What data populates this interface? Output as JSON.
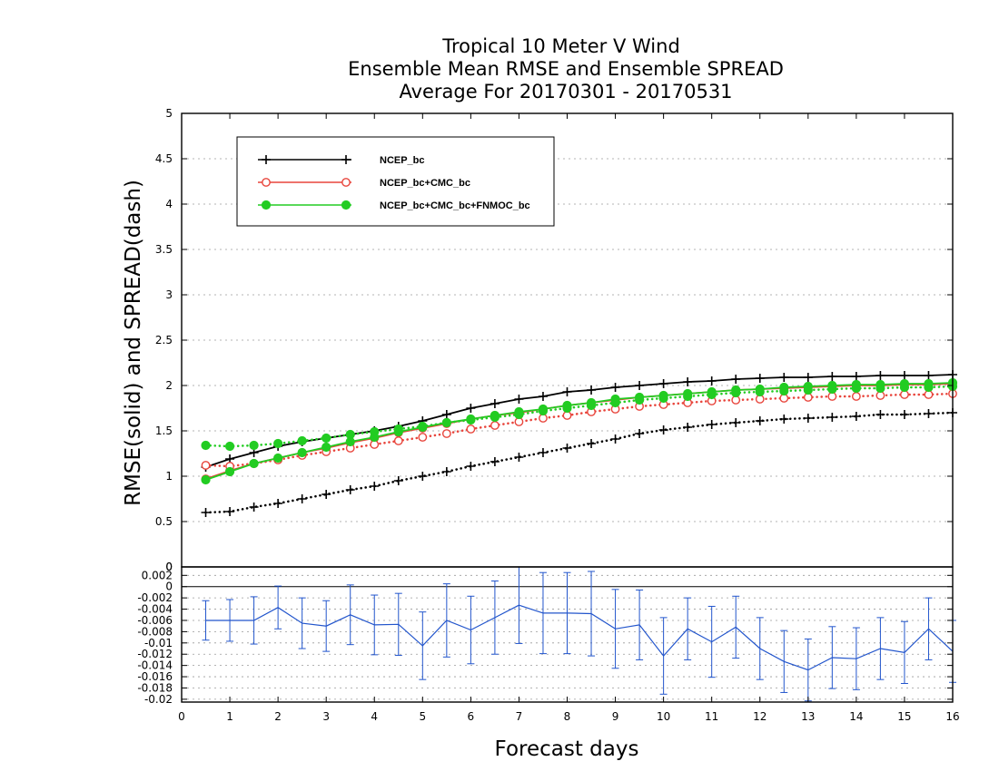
{
  "chart_data": [
    {
      "type": "line",
      "title": [
        "Tropical 10 Meter V Wind",
        "Ensemble Mean RMSE and Ensemble SPREAD",
        "Average For 20170301 - 20170531"
      ],
      "ylabel": "RMSE(solid)  and  SPREAD(dash)",
      "ylim": [
        0,
        5
      ],
      "yticks": [
        "0",
        "0.5",
        "1",
        "1.5",
        "2",
        "2.5",
        "3",
        "3.5",
        "4",
        "4.5",
        "5"
      ],
      "grid": true,
      "legend_position": "top-left",
      "x": [
        0.5,
        1.0,
        1.5,
        2.0,
        2.5,
        3.0,
        3.5,
        4.0,
        4.5,
        5.0,
        5.5,
        6.0,
        6.5,
        7.0,
        7.5,
        8.0,
        8.5,
        9.0,
        9.5,
        10.0,
        10.5,
        11.0,
        11.5,
        12.0,
        12.5,
        13.0,
        13.5,
        14.0,
        14.5,
        15.0,
        15.5,
        16.0
      ],
      "series": [
        {
          "name": "NCEP_bc",
          "style": "solid",
          "marker": "plus",
          "color": "#000000",
          "values": [
            1.1,
            1.19,
            1.26,
            1.33,
            1.38,
            1.42,
            1.46,
            1.5,
            1.55,
            1.61,
            1.68,
            1.75,
            1.8,
            1.85,
            1.88,
            1.93,
            1.95,
            1.98,
            2.0,
            2.02,
            2.04,
            2.05,
            2.07,
            2.08,
            2.09,
            2.09,
            2.1,
            2.1,
            2.11,
            2.11,
            2.11,
            2.12
          ]
        },
        {
          "name": "NCEP_bc",
          "style": "dash",
          "marker": "plus",
          "color": "#000000",
          "values": [
            0.6,
            0.61,
            0.66,
            0.7,
            0.75,
            0.8,
            0.85,
            0.89,
            0.95,
            1.0,
            1.05,
            1.11,
            1.16,
            1.21,
            1.26,
            1.31,
            1.36,
            1.41,
            1.47,
            1.51,
            1.54,
            1.57,
            1.59,
            1.61,
            1.63,
            1.64,
            1.65,
            1.66,
            1.68,
            1.68,
            1.69,
            1.7
          ]
        },
        {
          "name": "NCEP_bc+CMC_bc",
          "style": "solid",
          "marker": "open-circle",
          "color": "#e8453c",
          "values": [
            0.97,
            1.06,
            1.14,
            1.2,
            1.26,
            1.31,
            1.37,
            1.42,
            1.48,
            1.53,
            1.58,
            1.63,
            1.67,
            1.7,
            1.74,
            1.78,
            1.81,
            1.84,
            1.87,
            1.89,
            1.91,
            1.93,
            1.95,
            1.96,
            1.97,
            1.98,
            1.99,
            2.0,
            2.0,
            2.01,
            2.01,
            2.02
          ]
        },
        {
          "name": "NCEP_bc+CMC_bc",
          "style": "dash",
          "marker": "open-circle",
          "color": "#e8453c",
          "values": [
            1.12,
            1.11,
            1.14,
            1.18,
            1.23,
            1.27,
            1.31,
            1.35,
            1.39,
            1.43,
            1.47,
            1.52,
            1.56,
            1.6,
            1.64,
            1.67,
            1.71,
            1.74,
            1.77,
            1.79,
            1.81,
            1.83,
            1.84,
            1.85,
            1.86,
            1.87,
            1.88,
            1.88,
            1.89,
            1.9,
            1.9,
            1.91
          ]
        },
        {
          "name": "NCEP_bc+CMC_bc+FNMOC_bc",
          "style": "solid",
          "marker": "filled-circle",
          "color": "#22cc22",
          "values": [
            0.96,
            1.05,
            1.14,
            1.2,
            1.26,
            1.32,
            1.38,
            1.43,
            1.49,
            1.54,
            1.59,
            1.63,
            1.67,
            1.71,
            1.74,
            1.78,
            1.81,
            1.85,
            1.87,
            1.89,
            1.91,
            1.93,
            1.95,
            1.96,
            1.98,
            1.99,
            2.0,
            2.01,
            2.01,
            2.02,
            2.02,
            2.03
          ]
        },
        {
          "name": "NCEP_bc+CMC_bc+FNMOC_bc",
          "style": "dash",
          "marker": "filled-circle",
          "color": "#22cc22",
          "values": [
            1.34,
            1.33,
            1.34,
            1.36,
            1.39,
            1.42,
            1.46,
            1.49,
            1.52,
            1.55,
            1.59,
            1.62,
            1.65,
            1.68,
            1.72,
            1.75,
            1.78,
            1.81,
            1.84,
            1.86,
            1.88,
            1.9,
            1.92,
            1.93,
            1.94,
            1.95,
            1.96,
            1.97,
            1.97,
            1.98,
            1.98,
            1.99
          ]
        }
      ]
    },
    {
      "type": "line",
      "xlabel": "Forecast days",
      "xlim": [
        0,
        16
      ],
      "xticks": [
        "0",
        "1",
        "2",
        "3",
        "4",
        "5",
        "6",
        "7",
        "8",
        "9",
        "10",
        "11",
        "12",
        "13",
        "14",
        "15",
        "16"
      ],
      "ylim": [
        -0.0205,
        0.0035
      ],
      "yticks": [
        "0.002",
        "0",
        "-0.002",
        "-0.004",
        "-0.006",
        "-0.008",
        "-0.01",
        "-0.012",
        "-0.014",
        "-0.016",
        "-0.018",
        "-0.02"
      ],
      "top_tick_label": "0",
      "grid": true,
      "color": "#2255cc",
      "x": [
        0.5,
        1.0,
        1.5,
        2.0,
        2.5,
        3.0,
        3.5,
        4.0,
        4.5,
        5.0,
        5.5,
        6.0,
        6.5,
        7.0,
        7.5,
        8.0,
        8.5,
        9.0,
        9.5,
        10.0,
        10.5,
        11.0,
        11.5,
        12.0,
        12.5,
        13.0,
        13.5,
        14.0,
        14.5,
        15.0,
        15.5,
        16.0
      ],
      "values": [
        -0.006,
        -0.006,
        -0.006,
        -0.0037,
        -0.0065,
        -0.007,
        -0.005,
        -0.0068,
        -0.0067,
        -0.0105,
        -0.006,
        -0.0077,
        -0.0055,
        -0.0033,
        -0.0047,
        -0.0047,
        -0.0048,
        -0.0075,
        -0.0068,
        -0.0123,
        -0.0075,
        -0.0098,
        -0.0072,
        -0.011,
        -0.0133,
        -0.0148,
        -0.0126,
        -0.0128,
        -0.011,
        -0.0117,
        -0.0075,
        -0.0115
      ],
      "errors": [
        0.0035,
        0.0037,
        0.0042,
        0.0038,
        0.0045,
        0.0045,
        0.0053,
        0.0053,
        0.0055,
        0.006,
        0.0065,
        0.006,
        0.0065,
        0.0068,
        0.0072,
        0.0072,
        0.0075,
        0.007,
        0.0062,
        0.0068,
        0.0055,
        0.0063,
        0.0055,
        0.0055,
        0.0055,
        0.0055,
        0.0055,
        0.0055,
        0.0055,
        0.0055,
        0.0055,
        0.0055
      ]
    }
  ]
}
